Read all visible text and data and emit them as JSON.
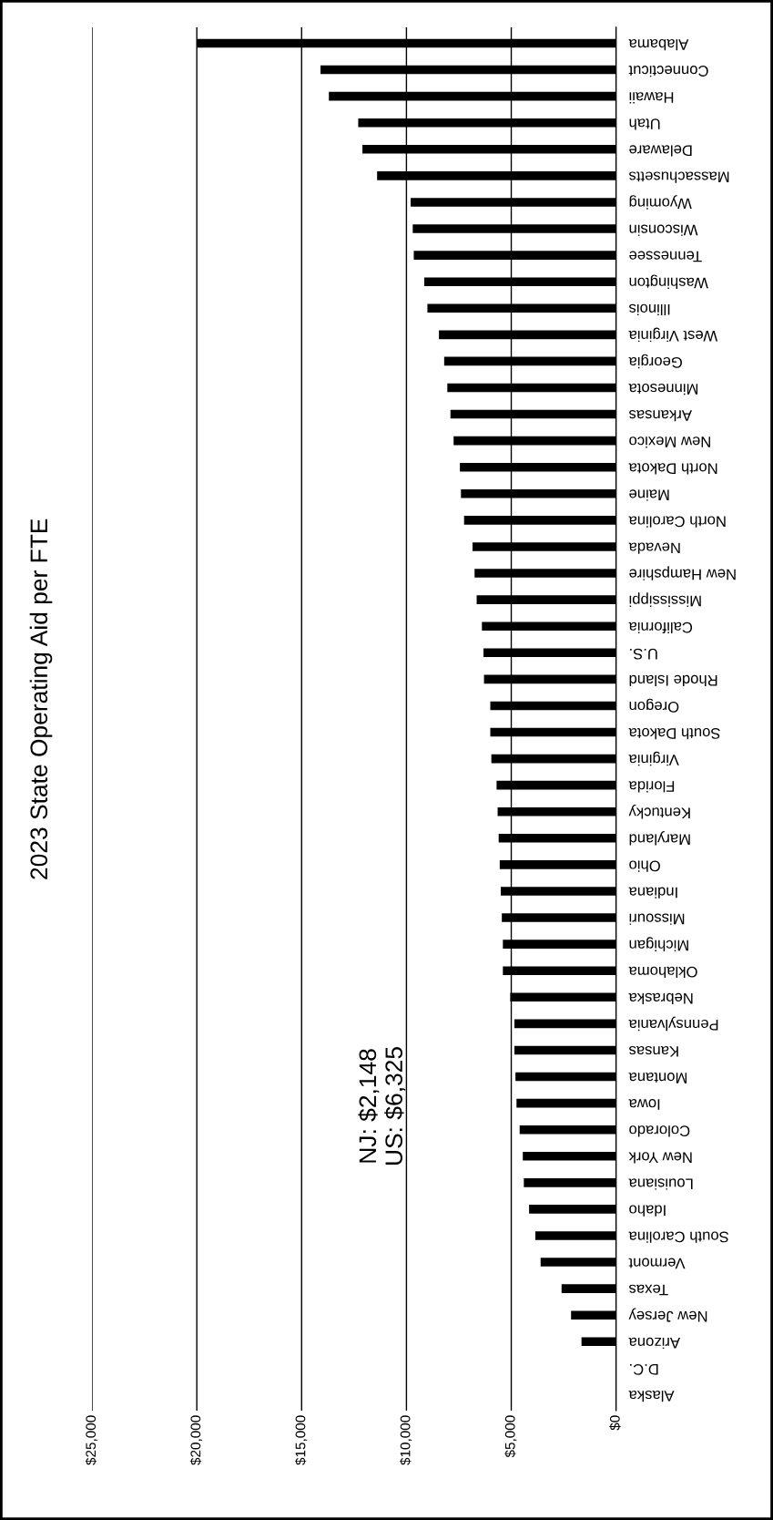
{
  "chart_data": {
    "type": "bar",
    "orientation": "horizontal",
    "title": "2023 State Operating Aid per FTE",
    "categories": [
      "Alabama",
      "Connecticut",
      "Hawaii",
      "Utah",
      "Delaware",
      "Massachusetts",
      "Wyoming",
      "Wisconsin",
      "Tennessee",
      "Washington",
      "Illinois",
      "West Virginia",
      "Georgia",
      "Minnesota",
      "Arkansas",
      "New Mexico",
      "North Dakota",
      "Maine",
      "North Carolina",
      "Nevada",
      "New Hampshire",
      "Mississippi",
      "California",
      "U.S.",
      "Rhode Island",
      "Oregon",
      "South Dakota",
      "Virginia",
      "Florida",
      "Kentucky",
      "Maryland",
      "Ohio",
      "Indiana",
      "Missouri",
      "Michigan",
      "Oklahoma",
      "Nebraska",
      "Pennsylvania",
      "Kansas",
      "Montana",
      "Iowa",
      "Colorado",
      "New York",
      "Louisiana",
      "Idaho",
      "South Carolina",
      "Vermont",
      "Texas",
      "New Jersey",
      "Arizona",
      "D.C.",
      "Alaska"
    ],
    "values": [
      20000,
      14100,
      13700,
      12300,
      12100,
      11400,
      9800,
      9700,
      9650,
      9150,
      9000,
      8450,
      8200,
      8050,
      7900,
      7750,
      7450,
      7400,
      7250,
      6850,
      6750,
      6650,
      6400,
      6325,
      6300,
      6000,
      6000,
      5950,
      5700,
      5650,
      5600,
      5550,
      5500,
      5450,
      5400,
      5400,
      5050,
      4850,
      4850,
      4800,
      4750,
      4600,
      4450,
      4400,
      4150,
      3850,
      3600,
      2600,
      2148,
      1650,
      0,
      0
    ],
    "color": "#000000",
    "xlim": [
      25000,
      0
    ],
    "xticks": [
      {
        "value": 25000,
        "label": "$25,000"
      },
      {
        "value": 20000,
        "label": "$20,000"
      },
      {
        "value": 15000,
        "label": "$15,000"
      },
      {
        "value": 10000,
        "label": "$10,000"
      },
      {
        "value": 5000,
        "label": "$5,000"
      },
      {
        "value": 0,
        "label": "$0"
      }
    ],
    "grid": "x",
    "annotations": [
      "NJ: $2,148",
      "US: $6,325"
    ]
  }
}
